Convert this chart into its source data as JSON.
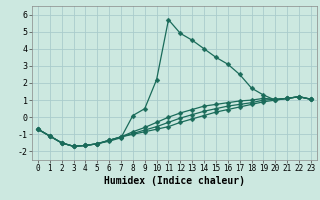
{
  "xlabel": "Humidex (Indice chaleur)",
  "ylabel": "",
  "xlim": [
    -0.5,
    23.5
  ],
  "ylim": [
    -2.5,
    6.5
  ],
  "yticks": [
    -2,
    -1,
    0,
    1,
    2,
    3,
    4,
    5,
    6
  ],
  "xticks": [
    0,
    1,
    2,
    3,
    4,
    5,
    6,
    7,
    8,
    9,
    10,
    11,
    12,
    13,
    14,
    15,
    16,
    17,
    18,
    19,
    20,
    21,
    22,
    23
  ],
  "background_color": "#cce8e0",
  "grid_color": "#aacccc",
  "line_color": "#1a6b5a",
  "series1_y": [
    -0.7,
    -1.1,
    -1.5,
    -1.7,
    -1.65,
    -1.55,
    -1.4,
    -1.2,
    0.1,
    0.5,
    2.2,
    5.7,
    4.9,
    4.5,
    4.0,
    3.5,
    3.1,
    2.5,
    1.7,
    1.3,
    1.0,
    1.1,
    1.2,
    1.05
  ],
  "series2_y": [
    -0.7,
    -1.1,
    -1.5,
    -1.7,
    -1.65,
    -1.55,
    -1.35,
    -1.15,
    -0.85,
    -0.6,
    -0.3,
    0.0,
    0.25,
    0.45,
    0.65,
    0.75,
    0.85,
    0.95,
    1.0,
    1.1,
    1.05,
    1.1,
    1.2,
    1.05
  ],
  "series3_y": [
    -0.7,
    -1.1,
    -1.5,
    -1.7,
    -1.65,
    -1.55,
    -1.35,
    -1.15,
    -0.95,
    -0.75,
    -0.55,
    -0.3,
    -0.05,
    0.15,
    0.35,
    0.5,
    0.65,
    0.75,
    0.85,
    1.0,
    1.05,
    1.1,
    1.2,
    1.05
  ],
  "series4_y": [
    -0.7,
    -1.1,
    -1.5,
    -1.7,
    -1.65,
    -1.55,
    -1.35,
    -1.15,
    -1.0,
    -0.85,
    -0.7,
    -0.55,
    -0.3,
    -0.1,
    0.1,
    0.3,
    0.45,
    0.6,
    0.75,
    0.9,
    1.0,
    1.1,
    1.2,
    1.05
  ]
}
